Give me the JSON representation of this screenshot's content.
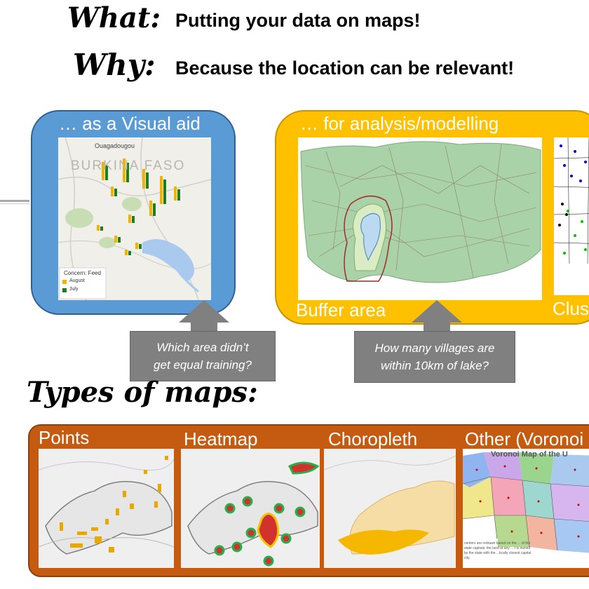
{
  "header": {
    "what_label": "What:",
    "what_text": "Putting your data on maps!",
    "why_label": "Why:",
    "why_text": "Because the location can be relevant!"
  },
  "visual_panel": {
    "title": "… as a Visual aid",
    "map": {
      "city_label": "Ouagadougou",
      "country_label": "BURKINA FASO",
      "legend_title": "Concern: Feed",
      "legend_items": [
        {
          "label": "August",
          "color": "#f0b400"
        },
        {
          "label": "July",
          "color": "#1e7d1e"
        }
      ]
    },
    "callout": {
      "line1": "Which area didn’t",
      "line2": "get equal training?"
    }
  },
  "analysis_panel": {
    "title": "… for analysis/modelling",
    "buffer_label": "Buffer area",
    "cluster_label": "Clus",
    "callout": {
      "line1": "How many villages are",
      "line2": "within 10km of lake?"
    }
  },
  "types": {
    "heading": "Types of maps:",
    "items": [
      {
        "label": "Points"
      },
      {
        "label": "Heatmap"
      },
      {
        "label": "Choropleth"
      },
      {
        "label": "Other (Voronoi"
      }
    ],
    "voronoi_title": "Voronoi Map of the U",
    "voronoi_note": "centers are redrawn based on the ... of the state capitals; the land at any ... t is owned by the state with the ...tically closest capital city."
  },
  "colors": {
    "visual_panel": "#5b9bd5",
    "analysis_panel": "#ffc000",
    "types_panel": "#c55a11",
    "callout": "#808080"
  }
}
